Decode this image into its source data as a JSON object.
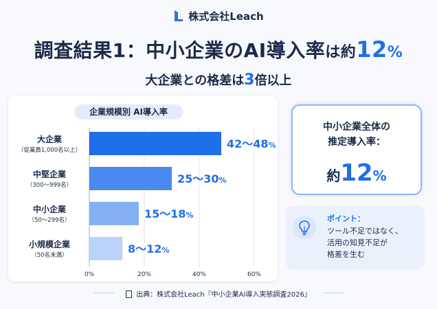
{
  "brand": {
    "name": "株式会社Leach"
  },
  "title": {
    "part1": "調査結果1：中小企業のAI導入率",
    "part2": "は",
    "part3": "約",
    "value": "12",
    "unit": "%"
  },
  "subtitle": {
    "part1": "大企業との格差は",
    "value": "3",
    "part2": "倍以上"
  },
  "chart_data": {
    "type": "bar",
    "orientation": "horizontal",
    "title": "企業規模別 AI導入率",
    "categories": [
      {
        "name": "大企業",
        "sub": "（従業員1,000名以上）",
        "range": [
          42,
          48
        ],
        "label": "42〜48",
        "unit": "%"
      },
      {
        "name": "中堅企業",
        "sub": "（300〜999名）",
        "range": [
          25,
          30
        ],
        "label": "25〜30",
        "unit": "%"
      },
      {
        "name": "中小企業",
        "sub": "（50〜299名）",
        "range": [
          15,
          18
        ],
        "label": "15〜18",
        "unit": "%"
      },
      {
        "name": "小規模企業",
        "sub": "（50名未満）",
        "range": [
          8,
          12
        ],
        "label": "8〜12",
        "unit": "%"
      }
    ],
    "xlim": [
      0,
      60
    ],
    "ticks": [
      "0%",
      "20%",
      "40%",
      "60%"
    ],
    "grid": true
  },
  "summary": {
    "label": "中小企業全体の\n推定導入率：",
    "prefix": "約",
    "value": "12",
    "unit": "%"
  },
  "point": {
    "title": "ポイント：",
    "text": "ツール不足ではなく、\n活用の知見不足が\n格差を生む"
  },
  "source": {
    "text": "出典：株式会社Leach『中小企業AI導入実態調査2026』"
  },
  "colors": {
    "accent": "#1f6fe8",
    "bar_colors": [
      "#1f6fe8",
      "#4a8af0",
      "#84b0f4",
      "#bcd3f8"
    ]
  }
}
